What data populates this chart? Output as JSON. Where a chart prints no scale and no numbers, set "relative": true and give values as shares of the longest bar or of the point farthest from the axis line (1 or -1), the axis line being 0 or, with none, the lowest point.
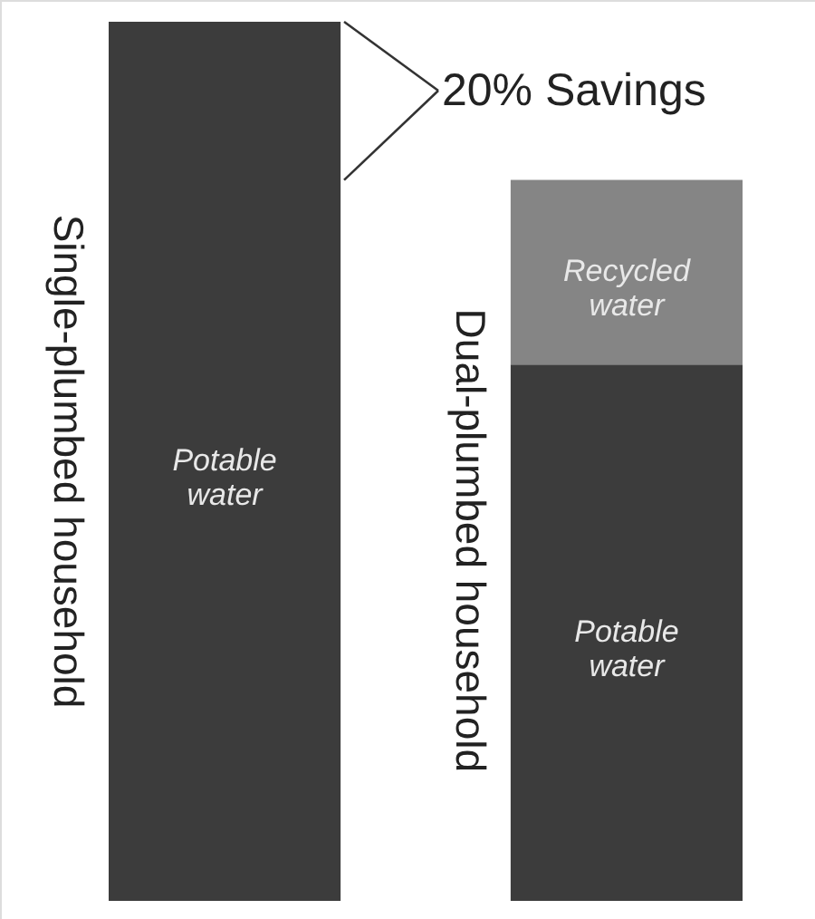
{
  "chart_data": {
    "type": "bar",
    "relative": true,
    "stacked": true,
    "categories": [
      "Single-plumbed household",
      "Dual-plumbed household"
    ],
    "series": [
      {
        "name": "Potable water",
        "color": "#3c3c3c",
        "values": [
          1,
          0.61
        ]
      },
      {
        "name": "Recycled water",
        "color": "#858585",
        "values": [
          0,
          0.21
        ]
      }
    ],
    "annotations": [
      "20% Savings"
    ]
  }
}
